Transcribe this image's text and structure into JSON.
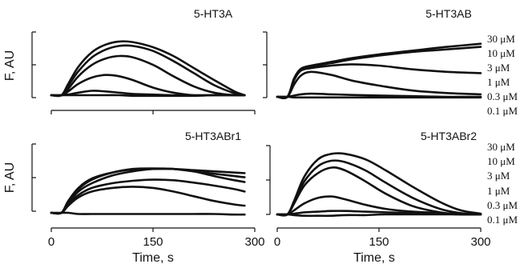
{
  "colors": {
    "trace": "#111111",
    "axis": "#111111",
    "background": "#ffffff"
  },
  "concentration_labels": [
    "30 μM",
    "10 μM",
    "3 μM",
    "1 μM",
    "0.3 μM",
    "0.1 μM"
  ],
  "chart_data": [
    {
      "type": "line",
      "title": "5-HT3A",
      "ylabel": "F, AU",
      "xlabel": "",
      "xlim": [
        0,
        300
      ],
      "ylim": [
        0,
        1
      ],
      "yticks_count": 3,
      "x_tick_labels": [],
      "series": [
        {
          "name": "",
          "x": [
            0,
            15,
            25,
            40,
            60,
            80,
            100,
            120,
            150,
            180,
            210,
            240,
            270,
            285
          ],
          "values": [
            0,
            0,
            0.18,
            0.45,
            0.68,
            0.8,
            0.85,
            0.84,
            0.76,
            0.62,
            0.43,
            0.24,
            0.06,
            0.0
          ]
        },
        {
          "name": "",
          "x": [
            0,
            15,
            25,
            40,
            60,
            80,
            100,
            120,
            150,
            180,
            210,
            240,
            270,
            285
          ],
          "values": [
            0,
            0,
            0.15,
            0.38,
            0.6,
            0.72,
            0.78,
            0.78,
            0.7,
            0.54,
            0.35,
            0.16,
            0.03,
            0.0
          ]
        },
        {
          "name": "",
          "x": [
            0,
            15,
            25,
            40,
            60,
            80,
            100,
            120,
            150,
            180,
            210,
            240,
            270,
            285
          ],
          "values": [
            0,
            0,
            0.1,
            0.3,
            0.48,
            0.58,
            0.62,
            0.6,
            0.48,
            0.3,
            0.14,
            0.04,
            0.0,
            0.0
          ]
        },
        {
          "name": "",
          "x": [
            0,
            15,
            25,
            40,
            60,
            80,
            100,
            120,
            150,
            180,
            210,
            240,
            270,
            285
          ],
          "values": [
            0,
            0,
            0.06,
            0.18,
            0.28,
            0.32,
            0.3,
            0.24,
            0.12,
            0.04,
            0.0,
            0.0,
            0.0,
            0.0
          ]
        },
        {
          "name": "",
          "x": [
            0,
            15,
            25,
            40,
            60,
            80,
            100,
            120,
            150,
            180,
            210,
            240,
            270,
            285
          ],
          "values": [
            0,
            0,
            0.01,
            0.04,
            0.07,
            0.06,
            0.04,
            0.02,
            0.01,
            0.0,
            0.0,
            0.0,
            0.0,
            0.0
          ]
        },
        {
          "name": "",
          "x": [
            0,
            15,
            25,
            40,
            60,
            80,
            100,
            120,
            150,
            180,
            210,
            240,
            270,
            285
          ],
          "values": [
            0,
            0,
            0.0,
            0.0,
            0.0,
            0.0,
            0.0,
            -0.01,
            -0.01,
            -0.01,
            -0.01,
            0.0,
            0.0,
            0.0
          ]
        }
      ]
    },
    {
      "type": "line",
      "title": "5-HT3AB",
      "ylabel": "",
      "xlabel": "",
      "xlim": [
        0,
        300
      ],
      "ylim": [
        0,
        1
      ],
      "yticks_count": 3,
      "x_tick_labels": [],
      "series": [
        {
          "name": "",
          "x": [
            0,
            15,
            25,
            35,
            50,
            80,
            110,
            150,
            200,
            250,
            300
          ],
          "values": [
            0,
            0,
            0.3,
            0.45,
            0.5,
            0.56,
            0.62,
            0.68,
            0.74,
            0.8,
            0.85
          ]
        },
        {
          "name": "",
          "x": [
            0,
            15,
            25,
            35,
            50,
            80,
            110,
            150,
            200,
            250,
            300
          ],
          "values": [
            0,
            0,
            0.28,
            0.44,
            0.48,
            0.54,
            0.6,
            0.66,
            0.72,
            0.76,
            0.8
          ]
        },
        {
          "name": "",
          "x": [
            0,
            15,
            25,
            35,
            50,
            80,
            110,
            150,
            200,
            250,
            300
          ],
          "values": [
            0,
            0,
            0.27,
            0.42,
            0.46,
            0.5,
            0.52,
            0.5,
            0.44,
            0.4,
            0.38
          ]
        },
        {
          "name": "",
          "x": [
            0,
            15,
            25,
            35,
            50,
            80,
            110,
            150,
            200,
            250,
            300
          ],
          "values": [
            0,
            0,
            0.2,
            0.34,
            0.4,
            0.35,
            0.26,
            0.18,
            0.1,
            0.06,
            0.04
          ]
        },
        {
          "name": "",
          "x": [
            0,
            15,
            25,
            35,
            50,
            80,
            110,
            150,
            200,
            250,
            300
          ],
          "values": [
            0,
            0,
            0.02,
            0.04,
            0.05,
            0.04,
            0.03,
            0.02,
            0.01,
            0.0,
            0.0
          ]
        },
        {
          "name": "",
          "x": [
            0,
            15,
            25,
            35,
            50,
            80,
            110,
            150,
            200,
            250,
            300
          ],
          "values": [
            0,
            0,
            -0.01,
            -0.01,
            -0.01,
            -0.01,
            -0.01,
            -0.01,
            -0.01,
            -0.01,
            -0.01
          ]
        }
      ]
    },
    {
      "type": "line",
      "title": "5-HT3ABr1",
      "ylabel": "F, AU",
      "xlabel": "Time, s",
      "xlim": [
        0,
        300
      ],
      "ylim": [
        0,
        1
      ],
      "yticks_count": 3,
      "x_ticks": [
        0,
        150,
        300
      ],
      "x_tick_labels": [
        "0",
        "150",
        "300"
      ],
      "series": [
        {
          "name": "",
          "x": [
            0,
            15,
            25,
            40,
            60,
            90,
            120,
            150,
            180,
            210,
            240,
            270,
            285
          ],
          "values": [
            0,
            0,
            0.2,
            0.42,
            0.58,
            0.68,
            0.73,
            0.74,
            0.74,
            0.72,
            0.7,
            0.68,
            0.67
          ]
        },
        {
          "name": "",
          "x": [
            0,
            15,
            25,
            40,
            60,
            90,
            120,
            150,
            180,
            210,
            240,
            270,
            285
          ],
          "values": [
            0,
            0,
            0.18,
            0.4,
            0.56,
            0.68,
            0.74,
            0.75,
            0.74,
            0.7,
            0.66,
            0.62,
            0.6
          ]
        },
        {
          "name": "",
          "x": [
            0,
            15,
            25,
            40,
            60,
            90,
            120,
            150,
            180,
            210,
            240,
            270,
            285
          ],
          "values": [
            0,
            0,
            0.16,
            0.36,
            0.5,
            0.63,
            0.7,
            0.74,
            0.74,
            0.7,
            0.62,
            0.55,
            0.52
          ]
        },
        {
          "name": "",
          "x": [
            0,
            15,
            25,
            40,
            60,
            90,
            120,
            150,
            180,
            210,
            240,
            270,
            285
          ],
          "values": [
            0,
            0,
            0.14,
            0.3,
            0.42,
            0.5,
            0.54,
            0.56,
            0.55,
            0.51,
            0.46,
            0.4,
            0.36
          ]
        },
        {
          "name": "",
          "x": [
            0,
            15,
            25,
            40,
            60,
            90,
            120,
            150,
            180,
            210,
            240,
            270,
            285
          ],
          "values": [
            0,
            0,
            0.12,
            0.26,
            0.36,
            0.42,
            0.44,
            0.42,
            0.36,
            0.28,
            0.2,
            0.14,
            0.12
          ]
        },
        {
          "name": "",
          "x": [
            0,
            15,
            25,
            40,
            60,
            90,
            120,
            150,
            180,
            210,
            240,
            270,
            285
          ],
          "values": [
            0,
            0,
            0.0,
            -0.02,
            -0.02,
            -0.02,
            -0.02,
            -0.02,
            -0.02,
            -0.02,
            -0.02,
            -0.03,
            -0.03
          ]
        }
      ]
    },
    {
      "type": "line",
      "title": "5-HT3ABr2",
      "ylabel": "",
      "xlabel": "Time, s",
      "xlim": [
        0,
        300
      ],
      "ylim": [
        0,
        1
      ],
      "yticks_count": 3,
      "x_ticks": [
        0,
        150,
        300
      ],
      "x_tick_labels": [
        "0",
        "150",
        "300"
      ],
      "series": [
        {
          "name": "",
          "x": [
            0,
            15,
            25,
            40,
            60,
            80,
            100,
            130,
            160,
            200,
            240,
            270,
            300
          ],
          "values": [
            0,
            0,
            0.2,
            0.55,
            0.8,
            0.88,
            0.88,
            0.8,
            0.64,
            0.4,
            0.18,
            0.06,
            0.01
          ]
        },
        {
          "name": "",
          "x": [
            0,
            15,
            25,
            40,
            60,
            80,
            100,
            130,
            160,
            200,
            240,
            270,
            300
          ],
          "values": [
            0,
            0,
            0.18,
            0.48,
            0.7,
            0.78,
            0.76,
            0.64,
            0.46,
            0.24,
            0.08,
            0.02,
            0.0
          ]
        },
        {
          "name": "",
          "x": [
            0,
            15,
            25,
            40,
            60,
            80,
            100,
            130,
            160,
            200,
            240,
            270,
            300
          ],
          "values": [
            0,
            0,
            0.16,
            0.42,
            0.6,
            0.68,
            0.64,
            0.48,
            0.3,
            0.12,
            0.03,
            0.0,
            0.0
          ]
        },
        {
          "name": "",
          "x": [
            0,
            15,
            25,
            40,
            60,
            80,
            100,
            130,
            160,
            200,
            240,
            270,
            300
          ],
          "values": [
            0,
            0,
            0.06,
            0.16,
            0.24,
            0.26,
            0.22,
            0.14,
            0.08,
            0.04,
            0.02,
            0.01,
            0.0
          ]
        },
        {
          "name": "",
          "x": [
            0,
            15,
            25,
            40,
            60,
            80,
            100,
            130,
            160,
            200,
            240,
            270,
            300
          ],
          "values": [
            0,
            0,
            0.01,
            0.03,
            0.04,
            0.05,
            0.05,
            0.04,
            0.03,
            0.02,
            0.01,
            0.0,
            0.0
          ]
        },
        {
          "name": "",
          "x": [
            0,
            15,
            25,
            40,
            60,
            80,
            100,
            130,
            160,
            200,
            240,
            270,
            300
          ],
          "values": [
            0,
            0,
            -0.01,
            -0.02,
            -0.02,
            -0.02,
            -0.01,
            -0.01,
            0.0,
            0.0,
            0.0,
            0.0,
            0.0
          ]
        }
      ]
    }
  ]
}
